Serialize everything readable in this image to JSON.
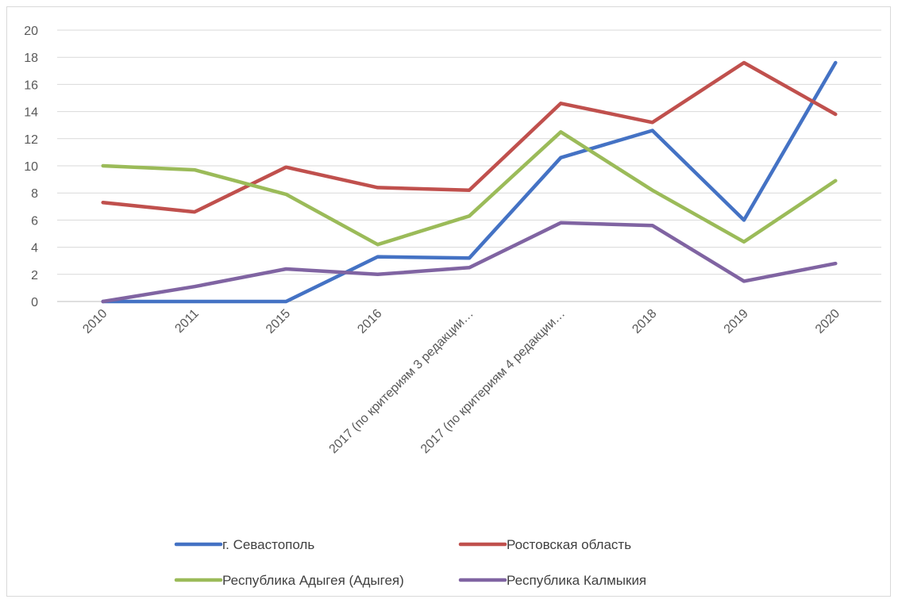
{
  "chart_data": {
    "type": "line",
    "title": "",
    "xlabel": "",
    "ylabel": "",
    "ylim": [
      0,
      20
    ],
    "yticks": [
      0,
      2,
      4,
      6,
      8,
      10,
      12,
      14,
      16,
      18,
      20
    ],
    "grid": true,
    "legend_position": "bottom",
    "categories": [
      "2010",
      "2011",
      "2015",
      "2016",
      "2017 (по критериям 3 редакции…",
      "2017 (по критериям 4 редакции…",
      "2018",
      "2019",
      "2020"
    ],
    "series": [
      {
        "name": "г. Севастополь",
        "color": "#4472C4",
        "values": [
          0,
          0,
          0,
          3.3,
          3.2,
          10.6,
          12.6,
          6.0,
          17.6
        ]
      },
      {
        "name": "Ростовская область",
        "color": "#C0504D",
        "values": [
          7.3,
          6.6,
          9.9,
          8.4,
          8.2,
          14.6,
          13.2,
          17.6,
          13.8
        ]
      },
      {
        "name": "Республика Адыгея (Адыгея)",
        "color": "#9BBB59",
        "values": [
          10.0,
          9.7,
          7.9,
          4.2,
          6.3,
          12.5,
          8.2,
          4.4,
          8.9
        ]
      },
      {
        "name": "Республика Калмыкия",
        "color": "#8064A2",
        "values": [
          0,
          1.1,
          2.4,
          2.0,
          2.5,
          5.8,
          5.6,
          1.5,
          2.8
        ]
      }
    ]
  }
}
